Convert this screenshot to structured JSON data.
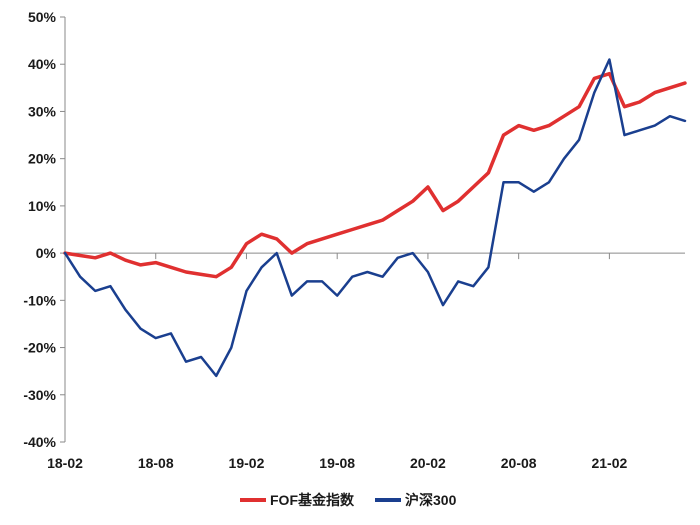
{
  "chart_data": {
    "type": "line",
    "y_format": "percent",
    "ylim": [
      -40,
      50
    ],
    "y_ticks": [
      50,
      40,
      30,
      20,
      10,
      0,
      -10,
      -20,
      -30,
      -40
    ],
    "y_tick_labels": [
      "50%",
      "40%",
      "30%",
      "20%",
      "10%",
      "0%",
      "-10%",
      "-20%",
      "-30%",
      "-40%"
    ],
    "xlim": [
      "2018-02",
      "2021-07"
    ],
    "x_tick_labels": [
      "18-02",
      "18-08",
      "19-02",
      "19-08",
      "20-02",
      "20-08",
      "21-02"
    ],
    "x_tick_positions": [
      "2018-02",
      "2018-08",
      "2019-02",
      "2019-08",
      "2020-02",
      "2020-08",
      "2021-02"
    ],
    "grid": false,
    "legend_position": "bottom-center",
    "series": [
      {
        "name": "FOF基金指数",
        "color": "#e03030",
        "points": [
          [
            "2018-02",
            0
          ],
          [
            "2018-03",
            -0.5
          ],
          [
            "2018-04",
            -1
          ],
          [
            "2018-05",
            0
          ],
          [
            "2018-06",
            -1.5
          ],
          [
            "2018-07",
            -2.5
          ],
          [
            "2018-08",
            -2
          ],
          [
            "2018-09",
            -3
          ],
          [
            "2018-10",
            -4
          ],
          [
            "2018-11",
            -4.5
          ],
          [
            "2018-12",
            -5
          ],
          [
            "2019-01",
            -3
          ],
          [
            "2019-02",
            2
          ],
          [
            "2019-03",
            4
          ],
          [
            "2019-04",
            3
          ],
          [
            "2019-05",
            0
          ],
          [
            "2019-06",
            2
          ],
          [
            "2019-07",
            3
          ],
          [
            "2019-08",
            4
          ],
          [
            "2019-09",
            5
          ],
          [
            "2019-10",
            6
          ],
          [
            "2019-11",
            7
          ],
          [
            "2019-12",
            9
          ],
          [
            "2020-01",
            11
          ],
          [
            "2020-02",
            14
          ],
          [
            "2020-03",
            9
          ],
          [
            "2020-04",
            11
          ],
          [
            "2020-05",
            14
          ],
          [
            "2020-06",
            17
          ],
          [
            "2020-07",
            25
          ],
          [
            "2020-08",
            27
          ],
          [
            "2020-09",
            26
          ],
          [
            "2020-10",
            27
          ],
          [
            "2020-11",
            29
          ],
          [
            "2020-12",
            31
          ],
          [
            "2021-01",
            37
          ],
          [
            "2021-02",
            38
          ],
          [
            "2021-03",
            31
          ],
          [
            "2021-04",
            32
          ],
          [
            "2021-05",
            34
          ],
          [
            "2021-06",
            35
          ],
          [
            "2021-07",
            36
          ]
        ]
      },
      {
        "name": "沪深300",
        "color": "#1a3f8f",
        "points": [
          [
            "2018-02",
            0
          ],
          [
            "2018-03",
            -5
          ],
          [
            "2018-04",
            -8
          ],
          [
            "2018-05",
            -7
          ],
          [
            "2018-06",
            -12
          ],
          [
            "2018-07",
            -16
          ],
          [
            "2018-08",
            -18
          ],
          [
            "2018-09",
            -17
          ],
          [
            "2018-10",
            -23
          ],
          [
            "2018-11",
            -22
          ],
          [
            "2018-12",
            -26
          ],
          [
            "2019-01",
            -20
          ],
          [
            "2019-02",
            -8
          ],
          [
            "2019-03",
            -3
          ],
          [
            "2019-04",
            0
          ],
          [
            "2019-05",
            -9
          ],
          [
            "2019-06",
            -6
          ],
          [
            "2019-07",
            -6
          ],
          [
            "2019-08",
            -9
          ],
          [
            "2019-09",
            -5
          ],
          [
            "2019-10",
            -4
          ],
          [
            "2019-11",
            -5
          ],
          [
            "2019-12",
            -1
          ],
          [
            "2020-01",
            0
          ],
          [
            "2020-02",
            -4
          ],
          [
            "2020-03",
            -11
          ],
          [
            "2020-04",
            -6
          ],
          [
            "2020-05",
            -7
          ],
          [
            "2020-06",
            -3
          ],
          [
            "2020-07",
            15
          ],
          [
            "2020-08",
            15
          ],
          [
            "2020-09",
            13
          ],
          [
            "2020-10",
            15
          ],
          [
            "2020-11",
            20
          ],
          [
            "2020-12",
            24
          ],
          [
            "2021-01",
            34
          ],
          [
            "2021-02",
            41
          ],
          [
            "2021-03",
            25
          ],
          [
            "2021-04",
            26
          ],
          [
            "2021-05",
            27
          ],
          [
            "2021-06",
            29
          ],
          [
            "2021-07",
            28
          ]
        ]
      }
    ]
  }
}
